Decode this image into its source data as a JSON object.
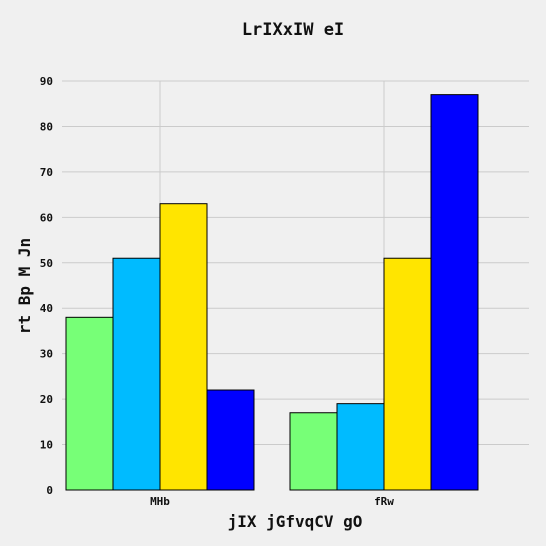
{
  "chart_data": {
    "type": "bar",
    "title": "LrIXxIW eI",
    "xlabel": "jIX jGfvqCV gO",
    "ylabel": "rt Bp M Jn",
    "categories": [
      "MHb",
      "fRw"
    ],
    "series": [
      {
        "color": "#77ff77",
        "values": [
          38,
          17
        ]
      },
      {
        "color": "#00bbff",
        "values": [
          51,
          19
        ]
      },
      {
        "color": "#ffe500",
        "values": [
          63,
          51
        ]
      },
      {
        "color": "#0000ff",
        "values": [
          22,
          87
        ]
      }
    ],
    "ylim": [
      0,
      90
    ],
    "yticks": [
      0,
      10,
      20,
      30,
      40,
      50,
      60,
      70,
      80,
      90
    ],
    "grid": true,
    "legend": "none"
  }
}
